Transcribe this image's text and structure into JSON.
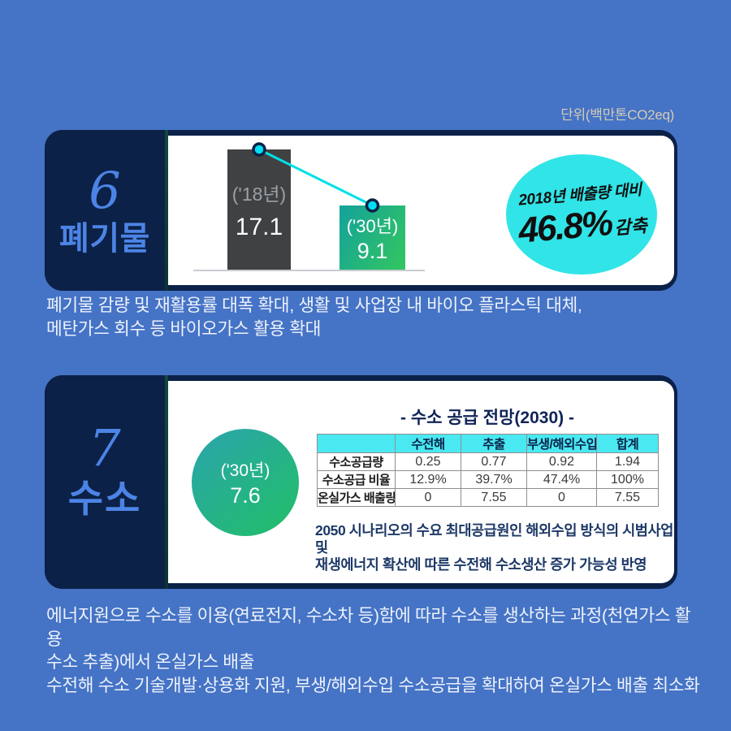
{
  "unit_label": "단위(백만톤CO2eq)",
  "section6": {
    "number": "6",
    "title": "폐기물",
    "badge": {
      "line1": "2018년 배출량 대비",
      "value": "46.8%",
      "suffix": "감축"
    },
    "description_lines": [
      "폐기물 감량 및 재활용률 대폭 확대, 생활 및 사업장 내 바이오 플라스틱 대체,",
      "메탄가스 회수 등 바이오가스 활용 확대"
    ]
  },
  "section7": {
    "number": "7",
    "title": "수소",
    "circle": {
      "label": "('30년)",
      "value": "7.6"
    },
    "table_title": "- 수소 공급 전망(2030) -",
    "note_lines": [
      "2050 시나리오의 수요 최대공급원인 해외수입 방식의 시범사업 및",
      "재생에너지 확산에 따른 수전해 수소생산 증가 가능성 반영"
    ],
    "description_lines": [
      "에너지원으로 수소를 이용(연료전지, 수소차 등)함에 따라 수소를 생산하는 과정(천연가스 활용",
      "수소 추출)에서 온실가스 배출",
      "수전해 수소 기술개발·상용화 지원, 부생/해외수입 수소공급을 확대하여 온실가스 배출 최소화"
    ]
  },
  "chart_data": [
    {
      "type": "bar",
      "title": "폐기물",
      "unit": "백만톤CO2eq",
      "categories": [
        "('18년)",
        "('30년)"
      ],
      "values": [
        17.1,
        9.1
      ],
      "annotation": "2018년 배출량 대비 46.8% 감축",
      "bar_colors": [
        "#3f4142",
        "#14a29b"
      ]
    },
    {
      "type": "table",
      "title": "- 수소 공급 전망(2030) -",
      "columns": [
        "",
        "수전해",
        "추출",
        "부생/해외수입",
        "합계"
      ],
      "rows": [
        [
          "수소공급량",
          "0.25",
          "0.77",
          "0.92",
          "1.94"
        ],
        [
          "수소공급 비율",
          "12.9%",
          "39.7%",
          "47.4%",
          "100%"
        ],
        [
          "온실가스 배출량",
          "0",
          "7.55",
          "0",
          "7.55"
        ]
      ]
    }
  ],
  "colors": {
    "background": "#4573c5",
    "panel_navy": "#0c2147",
    "section_label_blue": "#4c84e6",
    "accent_cyan": "#31e4e7",
    "bar_gray": "#3f4142",
    "bar_green": "#33c65f",
    "table_header_cyan": "#4ae9f2",
    "unit_beige": "#d3cbb8"
  }
}
